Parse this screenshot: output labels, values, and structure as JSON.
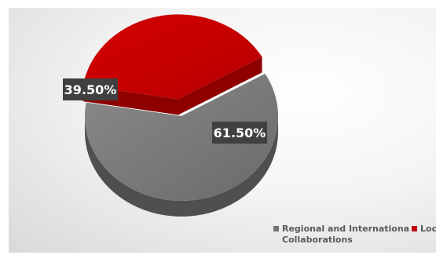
{
  "chart_data": {
    "type": "pie",
    "style": "3d-exploded",
    "title": "",
    "slices": [
      {
        "name": "Regional and Internationa Collaborations",
        "value": 61.5,
        "label": "61.50%",
        "color": "#737373"
      },
      {
        "name": "Local",
        "value": 39.5,
        "label": "39.50%",
        "color": "#c00000"
      }
    ],
    "legend": {
      "position": "bottom-right",
      "entries": [
        {
          "line1": "Regional and Internationa",
          "line2": "Collaborations",
          "color": "#737373"
        },
        {
          "line1": "Local",
          "line2": "",
          "color": "#c00000"
        }
      ]
    }
  }
}
